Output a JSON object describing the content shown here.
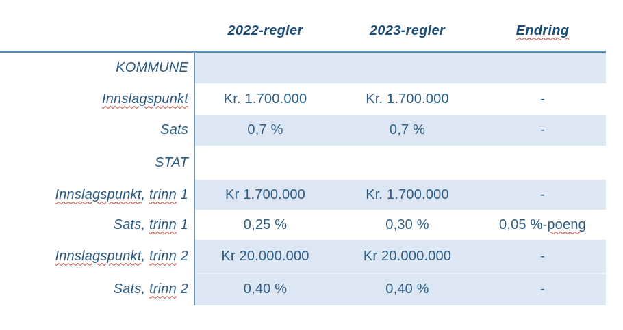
{
  "palette": {
    "background": "#ffffff",
    "value_text": "#2d5d85",
    "label_text": "#2c5a80",
    "header_text": "#1d4e79",
    "row_band": "#dce7f3",
    "border_line": "#5f8cad",
    "divider_line": "#6f9abc",
    "spellcheck_squiggle": "#c23b2f"
  },
  "header": {
    "columns": [
      {
        "label": "2022-regler",
        "misspelled": false
      },
      {
        "label": "2023-regler",
        "misspelled": false
      },
      {
        "label": "Endring",
        "misspelled": true
      }
    ]
  },
  "table": {
    "rows": [
      {
        "label_parts": [
          {
            "t": "KOMMUNE",
            "m": false
          }
        ],
        "cells": [
          [],
          [],
          []
        ],
        "shaded": true,
        "section": true
      },
      {
        "label_parts": [
          {
            "t": "Innslagspunkt",
            "m": true
          }
        ],
        "cells": [
          [
            {
              "t": "Kr. 1.700.000",
              "m": false
            }
          ],
          [
            {
              "t": "Kr. 1.700.000",
              "m": false
            }
          ],
          [
            {
              "t": "-",
              "m": false
            }
          ]
        ],
        "shaded": false,
        "section": false
      },
      {
        "label_parts": [
          {
            "t": "Sats",
            "m": false
          }
        ],
        "cells": [
          [
            {
              "t": "0,7 %",
              "m": false
            }
          ],
          [
            {
              "t": "0,7 %",
              "m": false
            }
          ],
          [
            {
              "t": "-",
              "m": false
            }
          ]
        ],
        "shaded": true,
        "section": false
      },
      {
        "label_parts": [
          {
            "t": "STAT",
            "m": false
          }
        ],
        "cells": [
          [],
          [],
          []
        ],
        "shaded": false,
        "section": true
      },
      {
        "label_parts": [
          {
            "t": "Innslagspunkt",
            "m": true
          },
          {
            "t": ", ",
            "m": false
          },
          {
            "t": "trinn",
            "m": true
          },
          {
            "t": " 1",
            "m": false
          }
        ],
        "cells": [
          [
            {
              "t": "Kr 1.700.000",
              "m": false
            }
          ],
          [
            {
              "t": "Kr. 1.700.000",
              "m": false
            }
          ],
          [
            {
              "t": "-",
              "m": false
            }
          ]
        ],
        "shaded": true,
        "section": false
      },
      {
        "label_parts": [
          {
            "t": "Sats, ",
            "m": false
          },
          {
            "t": "trinn",
            "m": true
          },
          {
            "t": " 1",
            "m": false
          }
        ],
        "cells": [
          [
            {
              "t": "0,25 %",
              "m": false
            }
          ],
          [
            {
              "t": "0,30 %",
              "m": false
            }
          ],
          [
            {
              "t": "0,05 %-",
              "m": false
            },
            {
              "t": "poeng",
              "m": true
            }
          ]
        ],
        "shaded": false,
        "section": false
      },
      {
        "label_parts": [
          {
            "t": "Innslagspunkt",
            "m": true
          },
          {
            "t": ", ",
            "m": false
          },
          {
            "t": "trinn",
            "m": true
          },
          {
            "t": " 2",
            "m": false
          }
        ],
        "cells": [
          [
            {
              "t": "Kr 20.000.000",
              "m": false
            }
          ],
          [
            {
              "t": "Kr 20.000.000",
              "m": false
            }
          ],
          [
            {
              "t": "-",
              "m": false
            }
          ]
        ],
        "shaded": true,
        "section": false
      },
      {
        "label_parts": [
          {
            "t": "Sats, ",
            "m": false
          },
          {
            "t": "trinn",
            "m": true
          },
          {
            "t": " 2",
            "m": false
          }
        ],
        "cells": [
          [
            {
              "t": "0,40 %",
              "m": false
            }
          ],
          [
            {
              "t": "0,40 %",
              "m": false
            }
          ],
          [
            {
              "t": "-",
              "m": false
            }
          ]
        ],
        "shaded": true,
        "section": false
      }
    ]
  }
}
